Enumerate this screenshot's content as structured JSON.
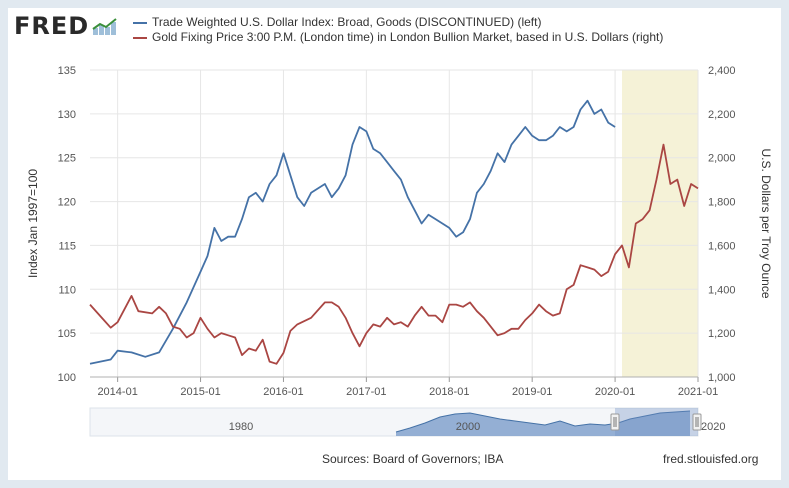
{
  "header": {
    "logo_text": "FRED"
  },
  "legend": {
    "left_series": "Trade Weighted U.S. Dollar Index: Broad, Goods (DISCONTINUED) (left)",
    "right_series": "Gold Fixing Price 3:00 P.M. (London time) in London Bullion Market, based in U.S. Dollars (right)"
  },
  "footer": {
    "sources": "Sources: Board of Governors; IBA",
    "site": "fred.stlouisfed.org"
  },
  "colors": {
    "dollar_index": "#4572a7",
    "gold": "#aa4643",
    "recession_shade": "#f5f2d7",
    "navigator_fill": "#8aa7cf",
    "navigator_line": "#4572a7"
  },
  "chart_data": {
    "type": "line",
    "xlim": [
      "2013-09",
      "2021-01"
    ],
    "x_ticks": [
      "2014-01",
      "2015-01",
      "2016-01",
      "2017-01",
      "2018-01",
      "2019-01",
      "2020-01",
      "2021-01"
    ],
    "left_axis": {
      "label": "Index Jan 1997=100",
      "range": [
        100,
        135
      ],
      "ticks": [
        "100",
        "105",
        "110",
        "115",
        "120",
        "125",
        "130",
        "135"
      ]
    },
    "right_axis": {
      "label": "U.S. Dollars per Troy Ounce",
      "range": [
        1000,
        2400
      ],
      "ticks": [
        "1,000",
        "1,200",
        "1,400",
        "1,600",
        "1,800",
        "2,000",
        "2,200",
        "2,400"
      ]
    },
    "shaded_period": {
      "start": "2020-02",
      "end": "2021-01"
    },
    "grid": true,
    "legend_position": "top",
    "series": [
      {
        "name": "Trade Weighted U.S. Dollar Index: Broad, Goods (DISCONTINUED)",
        "axis": "left",
        "points": [
          [
            "2013-09",
            101.5
          ],
          [
            "2013-12",
            102.0
          ],
          [
            "2014-01",
            103.0
          ],
          [
            "2014-03",
            102.8
          ],
          [
            "2014-05",
            102.3
          ],
          [
            "2014-07",
            102.8
          ],
          [
            "2014-09",
            105.5
          ],
          [
            "2014-11",
            108.5
          ],
          [
            "2015-01",
            112.0
          ],
          [
            "2015-02",
            113.8
          ],
          [
            "2015-03",
            117.0
          ],
          [
            "2015-04",
            115.5
          ],
          [
            "2015-05",
            116.0
          ],
          [
            "2015-06",
            116.0
          ],
          [
            "2015-07",
            118.0
          ],
          [
            "2015-08",
            120.5
          ],
          [
            "2015-09",
            121.0
          ],
          [
            "2015-10",
            120.0
          ],
          [
            "2015-11",
            122.0
          ],
          [
            "2015-12",
            123.0
          ],
          [
            "2016-01",
            125.5
          ],
          [
            "2016-02",
            123.0
          ],
          [
            "2016-03",
            120.5
          ],
          [
            "2016-04",
            119.5
          ],
          [
            "2016-05",
            121.0
          ],
          [
            "2016-06",
            121.5
          ],
          [
            "2016-07",
            122.0
          ],
          [
            "2016-08",
            120.5
          ],
          [
            "2016-09",
            121.5
          ],
          [
            "2016-10",
            123.0
          ],
          [
            "2016-11",
            126.5
          ],
          [
            "2016-12",
            128.5
          ],
          [
            "2017-01",
            128.0
          ],
          [
            "2017-02",
            126.0
          ],
          [
            "2017-03",
            125.5
          ],
          [
            "2017-04",
            124.5
          ],
          [
            "2017-05",
            123.5
          ],
          [
            "2017-06",
            122.5
          ],
          [
            "2017-07",
            120.5
          ],
          [
            "2017-08",
            119.0
          ],
          [
            "2017-09",
            117.5
          ],
          [
            "2017-10",
            118.5
          ],
          [
            "2017-11",
            118.0
          ],
          [
            "2017-12",
            117.5
          ],
          [
            "2018-01",
            117.0
          ],
          [
            "2018-02",
            116.0
          ],
          [
            "2018-03",
            116.5
          ],
          [
            "2018-04",
            118.0
          ],
          [
            "2018-05",
            121.0
          ],
          [
            "2018-06",
            122.0
          ],
          [
            "2018-07",
            123.5
          ],
          [
            "2018-08",
            125.5
          ],
          [
            "2018-09",
            124.5
          ],
          [
            "2018-10",
            126.5
          ],
          [
            "2018-11",
            127.5
          ],
          [
            "2018-12",
            128.5
          ],
          [
            "2019-01",
            127.5
          ],
          [
            "2019-02",
            127.0
          ],
          [
            "2019-03",
            127.0
          ],
          [
            "2019-04",
            127.5
          ],
          [
            "2019-05",
            128.5
          ],
          [
            "2019-06",
            128.0
          ],
          [
            "2019-07",
            128.5
          ],
          [
            "2019-08",
            130.5
          ],
          [
            "2019-09",
            131.5
          ],
          [
            "2019-10",
            130.0
          ],
          [
            "2019-11",
            130.5
          ],
          [
            "2019-12",
            129.0
          ],
          [
            "2020-01",
            128.5
          ]
        ]
      },
      {
        "name": "Gold Fixing Price 3:00 P.M. (London time) in London Bullion Market, based in U.S. Dollars",
        "axis": "right",
        "points": [
          [
            "2013-09",
            1330
          ],
          [
            "2013-11",
            1260
          ],
          [
            "2013-12",
            1225
          ],
          [
            "2014-01",
            1250
          ],
          [
            "2014-03",
            1370
          ],
          [
            "2014-04",
            1300
          ],
          [
            "2014-06",
            1290
          ],
          [
            "2014-07",
            1320
          ],
          [
            "2014-08",
            1290
          ],
          [
            "2014-09",
            1230
          ],
          [
            "2014-10",
            1220
          ],
          [
            "2014-11",
            1180
          ],
          [
            "2014-12",
            1200
          ],
          [
            "2015-01",
            1270
          ],
          [
            "2015-02",
            1220
          ],
          [
            "2015-03",
            1180
          ],
          [
            "2015-04",
            1200
          ],
          [
            "2015-05",
            1190
          ],
          [
            "2015-06",
            1180
          ],
          [
            "2015-07",
            1100
          ],
          [
            "2015-08",
            1130
          ],
          [
            "2015-09",
            1120
          ],
          [
            "2015-10",
            1170
          ],
          [
            "2015-11",
            1070
          ],
          [
            "2015-12",
            1060
          ],
          [
            "2016-01",
            1110
          ],
          [
            "2016-02",
            1210
          ],
          [
            "2016-03",
            1240
          ],
          [
            "2016-05",
            1270
          ],
          [
            "2016-07",
            1340
          ],
          [
            "2016-08",
            1340
          ],
          [
            "2016-09",
            1320
          ],
          [
            "2016-10",
            1270
          ],
          [
            "2016-11",
            1200
          ],
          [
            "2016-12",
            1140
          ],
          [
            "2017-01",
            1200
          ],
          [
            "2017-02",
            1240
          ],
          [
            "2017-03",
            1230
          ],
          [
            "2017-04",
            1270
          ],
          [
            "2017-05",
            1240
          ],
          [
            "2017-06",
            1250
          ],
          [
            "2017-07",
            1230
          ],
          [
            "2017-08",
            1280
          ],
          [
            "2017-09",
            1320
          ],
          [
            "2017-10",
            1280
          ],
          [
            "2017-11",
            1280
          ],
          [
            "2017-12",
            1250
          ],
          [
            "2018-01",
            1330
          ],
          [
            "2018-02",
            1330
          ],
          [
            "2018-03",
            1320
          ],
          [
            "2018-04",
            1340
          ],
          [
            "2018-05",
            1300
          ],
          [
            "2018-06",
            1270
          ],
          [
            "2018-07",
            1230
          ],
          [
            "2018-08",
            1190
          ],
          [
            "2018-09",
            1200
          ],
          [
            "2018-10",
            1220
          ],
          [
            "2018-11",
            1220
          ],
          [
            "2018-12",
            1260
          ],
          [
            "2019-01",
            1290
          ],
          [
            "2019-02",
            1330
          ],
          [
            "2019-03",
            1300
          ],
          [
            "2019-04",
            1280
          ],
          [
            "2019-05",
            1290
          ],
          [
            "2019-06",
            1400
          ],
          [
            "2019-07",
            1420
          ],
          [
            "2019-08",
            1510
          ],
          [
            "2019-09",
            1500
          ],
          [
            "2019-10",
            1490
          ],
          [
            "2019-11",
            1460
          ],
          [
            "2019-12",
            1480
          ],
          [
            "2020-01",
            1560
          ],
          [
            "2020-02",
            1600
          ],
          [
            "2020-03",
            1500
          ],
          [
            "2020-04",
            1700
          ],
          [
            "2020-05",
            1720
          ],
          [
            "2020-06",
            1760
          ],
          [
            "2020-07",
            1900
          ],
          [
            "2020-08",
            2060
          ],
          [
            "2020-09",
            1880
          ],
          [
            "2020-10",
            1900
          ],
          [
            "2020-11",
            1780
          ],
          [
            "2020-12",
            1880
          ],
          [
            "2021-01",
            1860
          ]
        ]
      }
    ]
  },
  "navigator": {
    "label_1980": "1980",
    "label_2000": "2000",
    "label_2020": "2020"
  }
}
